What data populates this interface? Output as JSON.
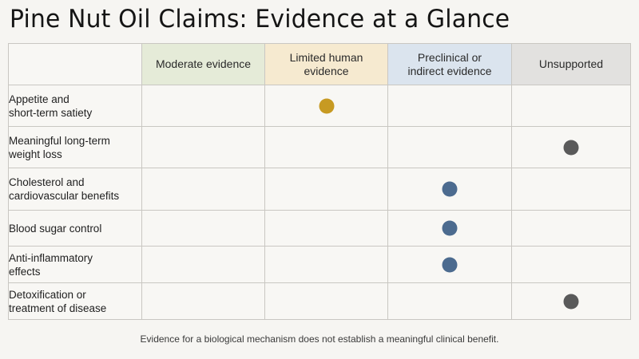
{
  "title": "Pine Nut Oil Claims: Evidence at a Glance",
  "columns": [
    {
      "key": "moderate",
      "label": "Moderate evidence"
    },
    {
      "key": "limited",
      "label": "Limited human evidence"
    },
    {
      "key": "preclinical",
      "label": "Preclinical or indirect evidence"
    },
    {
      "key": "unsupported",
      "label": "Unsupported"
    }
  ],
  "colors": {
    "limited_dot": "#c79a22",
    "preclinical_dot": "#4c6b8f",
    "unsupported_dot": "#5a5a5a"
  },
  "rows": [
    {
      "claim": "Appetite and\nshort-term satiety",
      "rating": "limited"
    },
    {
      "claim": "Meaningful long-term\nweight loss",
      "rating": "unsupported"
    },
    {
      "claim": "Cholesterol and\ncardiovascular benefits",
      "rating": "preclinical"
    },
    {
      "claim": "Blood sugar control",
      "rating": "preclinical"
    },
    {
      "claim": "Anti-inflammatory\neffects",
      "rating": "preclinical"
    },
    {
      "claim": "Detoxification or\ntreatment of disease",
      "rating": "unsupported"
    }
  ],
  "footnote": "Evidence for a biological mechanism does not establish a meaningful clinical benefit."
}
